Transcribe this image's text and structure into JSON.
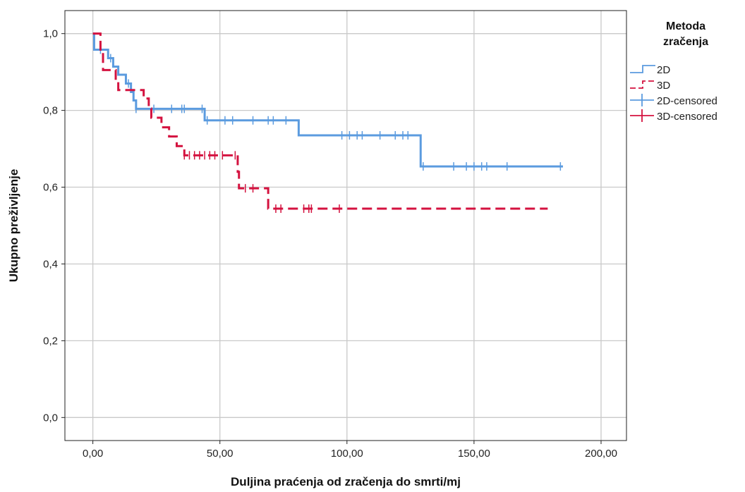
{
  "chart_data": {
    "type": "line",
    "subtype": "kaplan-meier step",
    "xlabel": "Duljina praćenja od zračenja do smrti/mj",
    "ylabel": "Ukupno preživljenje",
    "xlim": [
      -11,
      210
    ],
    "ylim": [
      -0.06,
      1.06
    ],
    "x_ticks": [
      0,
      50,
      100,
      150,
      200
    ],
    "x_tick_labels": [
      "0,00",
      "50,00",
      "100,00",
      "150,00",
      "200,00"
    ],
    "y_ticks": [
      0,
      0.2,
      0.4,
      0.6,
      0.8,
      1.0
    ],
    "y_tick_labels": [
      "0,0",
      "0,2",
      "0,4",
      "0,6",
      "0,8",
      "1,0"
    ],
    "grid": true,
    "legend": {
      "title": "Metoda zračenja",
      "title_lines": [
        "Metoda",
        "zračenja"
      ],
      "placement": "top-right outside",
      "entries": [
        "2D",
        "3D",
        "2D-censored",
        "3D-censored"
      ]
    },
    "series": [
      {
        "name": "2D",
        "color": "#5b9bdf",
        "dash": "solid",
        "steps": [
          [
            0,
            1.0
          ],
          [
            0.5,
            0.958
          ],
          [
            2,
            0.958
          ],
          [
            4,
            0.958
          ],
          [
            6,
            0.936
          ],
          [
            8,
            0.914
          ],
          [
            10,
            0.893
          ],
          [
            13,
            0.87
          ],
          [
            15,
            0.848
          ],
          [
            16,
            0.826
          ],
          [
            17,
            0.804
          ],
          [
            44,
            0.774
          ],
          [
            81,
            0.735
          ],
          [
            129,
            0.654
          ],
          [
            185,
            0.654
          ]
        ],
        "censored": [
          [
            3,
            0.958
          ],
          [
            7,
            0.936
          ],
          [
            14,
            0.87
          ],
          [
            17,
            0.804
          ],
          [
            24,
            0.804
          ],
          [
            31,
            0.804
          ],
          [
            35,
            0.804
          ],
          [
            36,
            0.804
          ],
          [
            43,
            0.804
          ],
          [
            45,
            0.774
          ],
          [
            52,
            0.774
          ],
          [
            55,
            0.774
          ],
          [
            63,
            0.774
          ],
          [
            69,
            0.774
          ],
          [
            71,
            0.774
          ],
          [
            76,
            0.774
          ],
          [
            98,
            0.735
          ],
          [
            101,
            0.735
          ],
          [
            104,
            0.735
          ],
          [
            106,
            0.735
          ],
          [
            113,
            0.735
          ],
          [
            119,
            0.735
          ],
          [
            122,
            0.735
          ],
          [
            124,
            0.735
          ],
          [
            130,
            0.654
          ],
          [
            142,
            0.654
          ],
          [
            147,
            0.654
          ],
          [
            150,
            0.654
          ],
          [
            153,
            0.654
          ],
          [
            155,
            0.654
          ],
          [
            163,
            0.654
          ],
          [
            184,
            0.654
          ]
        ]
      },
      {
        "name": "3D",
        "color": "#d4123f",
        "dash": "dashed",
        "steps": [
          [
            0,
            1.0
          ],
          [
            3,
            0.952
          ],
          [
            4,
            0.905
          ],
          [
            9,
            0.876
          ],
          [
            10,
            0.853
          ],
          [
            20,
            0.831
          ],
          [
            22,
            0.805
          ],
          [
            23,
            0.781
          ],
          [
            27,
            0.756
          ],
          [
            30,
            0.732
          ],
          [
            33,
            0.707
          ],
          [
            36,
            0.683
          ],
          [
            57,
            0.64
          ],
          [
            57.5,
            0.597
          ],
          [
            69,
            0.544
          ],
          [
            179,
            0.544
          ]
        ],
        "censored": [
          [
            36,
            0.683
          ],
          [
            38,
            0.683
          ],
          [
            40,
            0.683
          ],
          [
            42,
            0.683
          ],
          [
            44,
            0.683
          ],
          [
            46,
            0.683
          ],
          [
            48,
            0.683
          ],
          [
            51,
            0.683
          ],
          [
            56,
            0.683
          ],
          [
            60,
            0.597
          ],
          [
            63,
            0.597
          ],
          [
            72,
            0.544
          ],
          [
            74,
            0.544
          ],
          [
            83,
            0.544
          ],
          [
            85,
            0.544
          ],
          [
            86,
            0.544
          ],
          [
            97,
            0.544
          ]
        ]
      }
    ]
  }
}
